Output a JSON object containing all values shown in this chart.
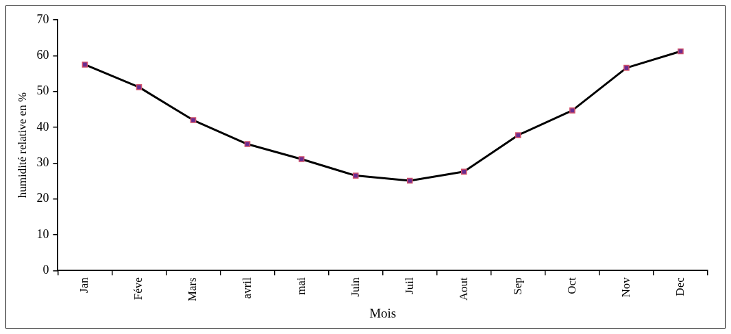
{
  "chart_data": {
    "type": "line",
    "xlabel": "Mois",
    "ylabel": "humidité relative en %",
    "categories": [
      "Jan",
      "Féve",
      "Mars",
      "avril",
      "mai",
      "Juin",
      "Juil",
      "Aout",
      "Sep",
      "Oct",
      "Nov",
      "Dec"
    ],
    "series": [
      {
        "color": "#000000",
        "values": [
          57.5,
          51.2,
          42,
          35.3,
          31.1,
          26.5,
          25.1,
          27.6,
          37.8,
          44.7,
          56.6,
          61.2
        ]
      }
    ],
    "ylim": [
      0,
      70
    ],
    "yticks": [
      0,
      10,
      20,
      30,
      40,
      50,
      60,
      70
    ],
    "grid": false,
    "legend": false,
    "marker": "square",
    "line_style": "solid"
  }
}
